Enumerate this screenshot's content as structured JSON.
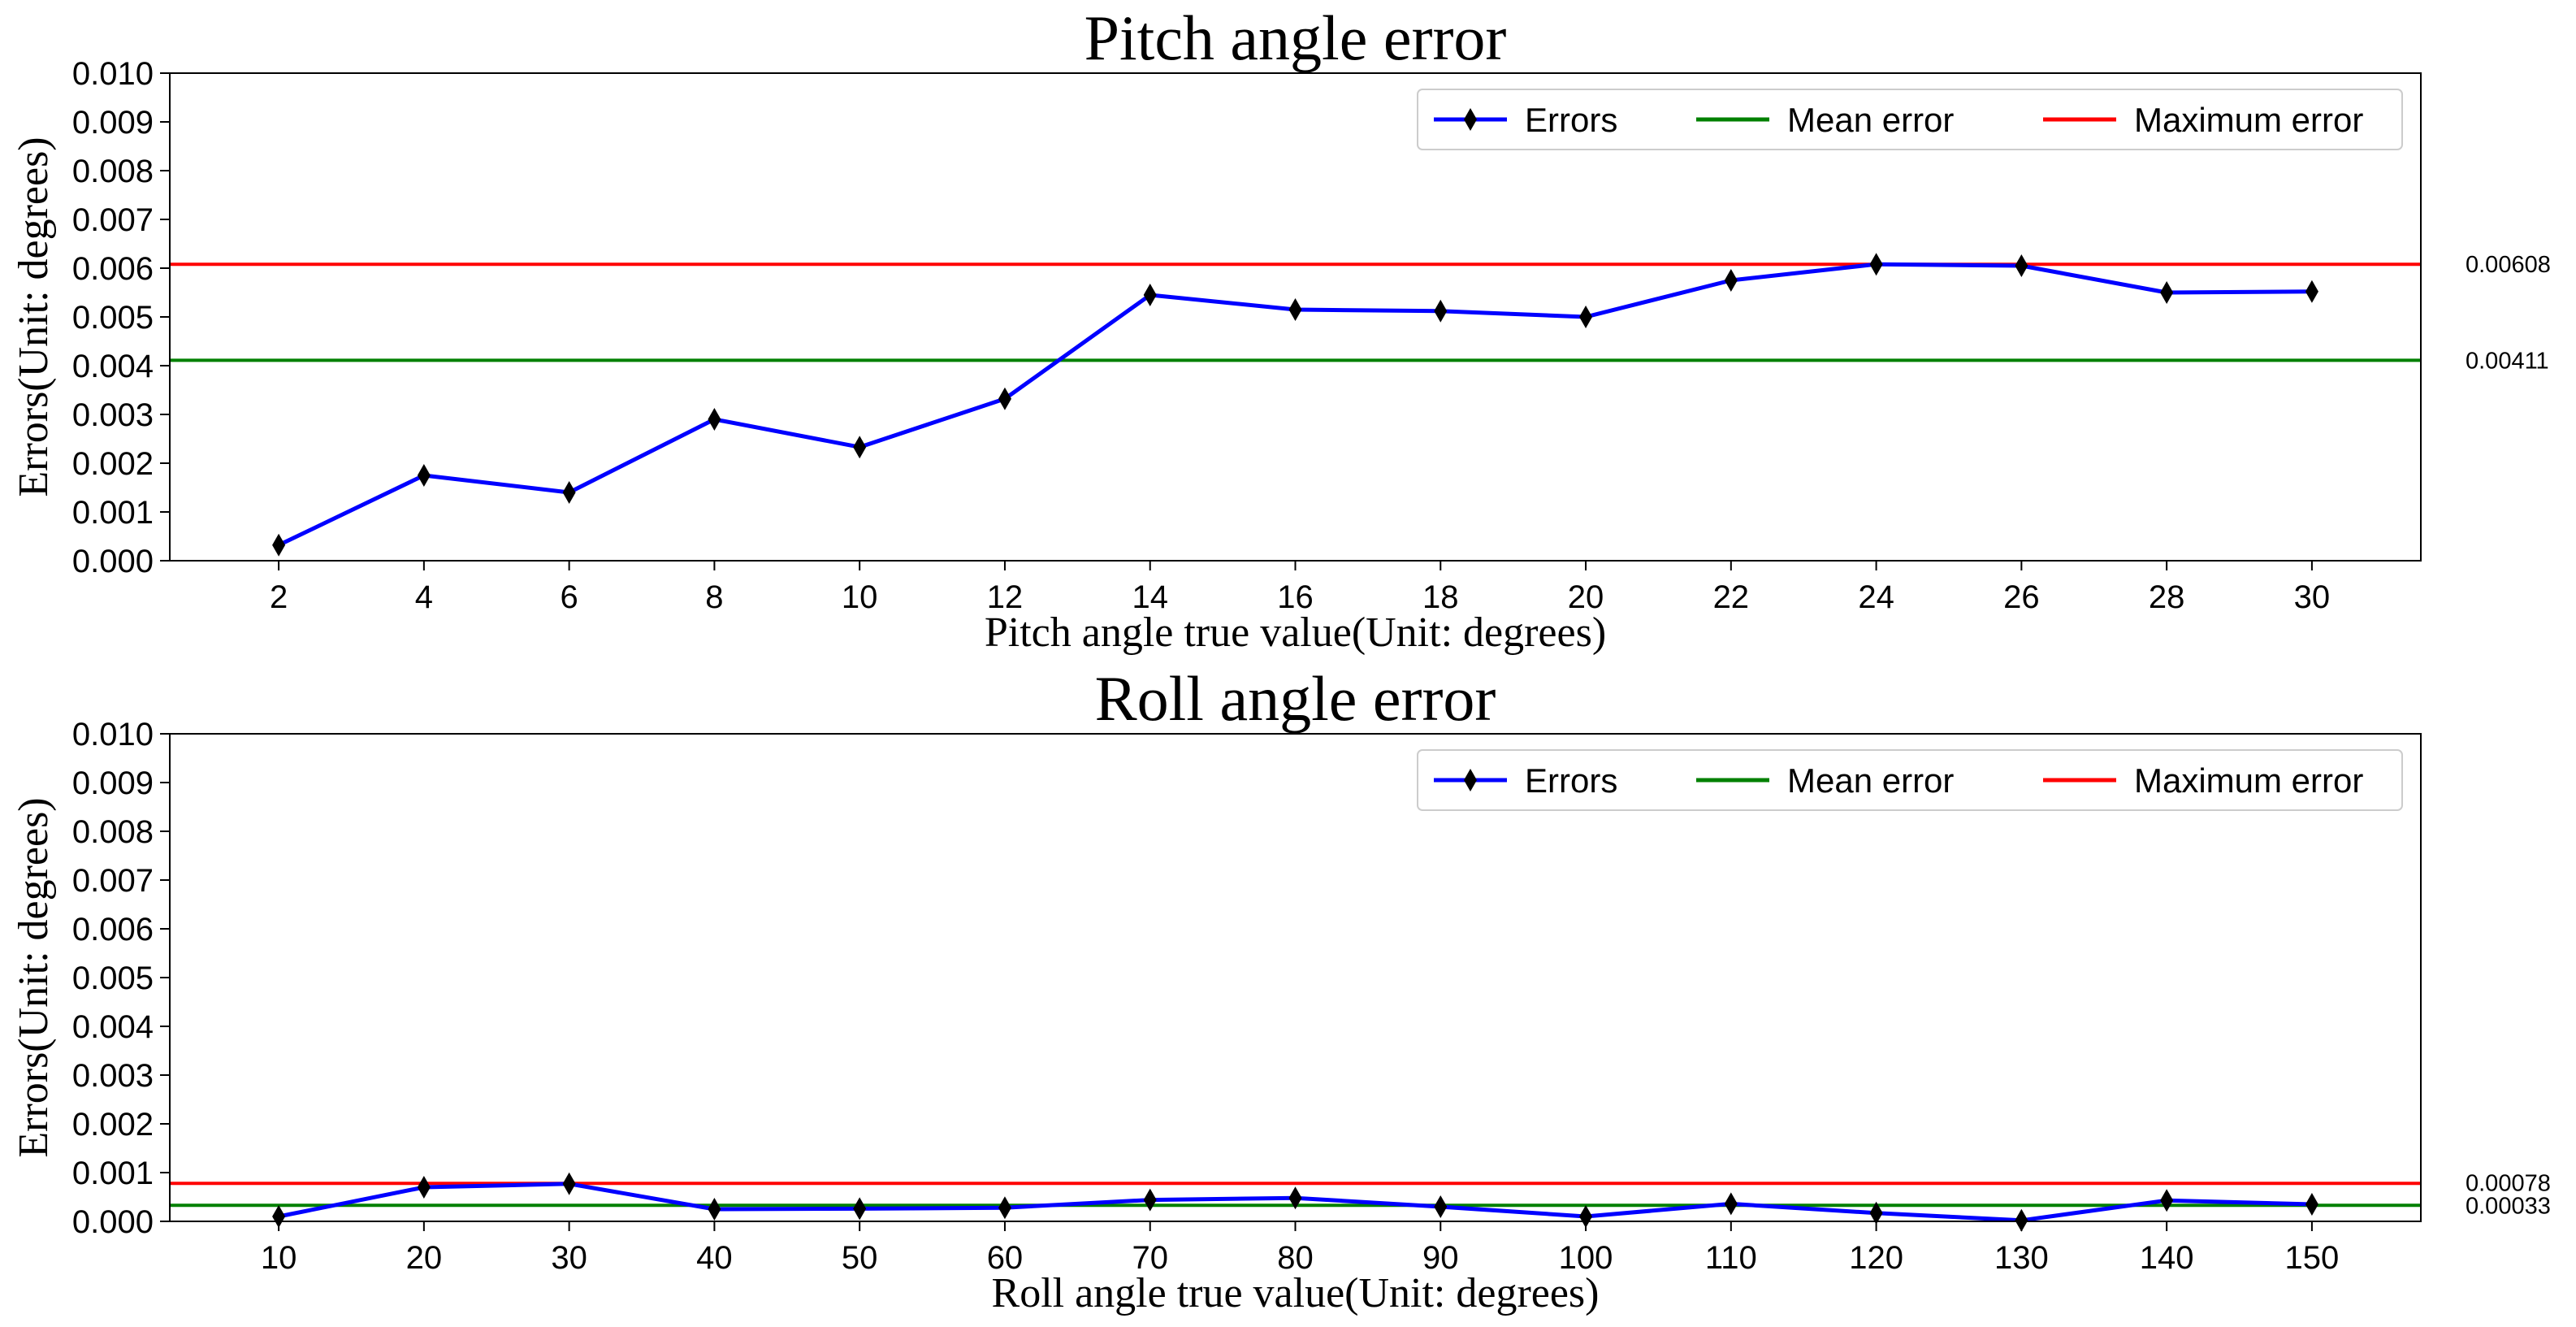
{
  "chart_data": [
    {
      "type": "line",
      "title": "Pitch angle error",
      "xlabel": "Pitch angle true value(Unit: degrees)",
      "ylabel": "Errors(Unit: degrees)",
      "x": [
        2,
        4,
        6,
        8,
        10,
        12,
        14,
        16,
        18,
        20,
        22,
        24,
        26,
        28,
        30
      ],
      "x_tick_labels": [
        "2",
        "4",
        "6",
        "8",
        "10",
        "12",
        "14",
        "16",
        "18",
        "20",
        "22",
        "24",
        "26",
        "28",
        "30"
      ],
      "y_tick_labels": [
        "0.000",
        "0.001",
        "0.002",
        "0.003",
        "0.004",
        "0.005",
        "0.006",
        "0.007",
        "0.008",
        "0.009",
        "0.010"
      ],
      "ylim": [
        0,
        0.01
      ],
      "series": [
        {
          "name": "Errors",
          "color": "#0000ff",
          "marker": "thin-diamond",
          "values": [
            0.00032,
            0.00175,
            0.0014,
            0.0029,
            0.00233,
            0.00332,
            0.00545,
            0.00515,
            0.00512,
            0.005,
            0.00575,
            0.00608,
            0.00605,
            0.0055,
            0.00552
          ]
        },
        {
          "name": "Mean error",
          "color": "#008000",
          "value": 0.00411,
          "label": "0.00411"
        },
        {
          "name": "Maximum error",
          "color": "#ff0000",
          "value": 0.00608,
          "label": "0.00608"
        }
      ],
      "legend": [
        "Errors",
        "Mean error",
        "Maximum error"
      ],
      "legend_position": "top-right",
      "grid": false
    },
    {
      "type": "line",
      "title": "Roll angle error",
      "xlabel": "Roll angle true value(Unit: degrees)",
      "ylabel": "Errors(Unit: degrees)",
      "x": [
        10,
        20,
        30,
        40,
        50,
        60,
        70,
        80,
        90,
        100,
        110,
        120,
        130,
        140,
        150
      ],
      "x_tick_labels": [
        "10",
        "20",
        "30",
        "40",
        "50",
        "60",
        "70",
        "80",
        "90",
        "100",
        "110",
        "120",
        "130",
        "140",
        "150"
      ],
      "y_tick_labels": [
        "0.000",
        "0.001",
        "0.002",
        "0.003",
        "0.004",
        "0.005",
        "0.006",
        "0.007",
        "0.008",
        "0.009",
        "0.010"
      ],
      "ylim": [
        0,
        0.01
      ],
      "series": [
        {
          "name": "Errors",
          "color": "#0000ff",
          "marker": "thin-diamond",
          "values": [
            0.0001,
            0.0007,
            0.00077,
            0.00025,
            0.00026,
            0.00028,
            0.00044,
            0.00048,
            0.0003,
            0.0001,
            0.00036,
            0.00017,
            2e-05,
            0.00043,
            0.00035
          ]
        },
        {
          "name": "Mean error",
          "color": "#008000",
          "value": 0.00033,
          "label": "0.00033"
        },
        {
          "name": "Maximum error",
          "color": "#ff0000",
          "value": 0.00078,
          "label": "0.00078"
        }
      ],
      "legend": [
        "Errors",
        "Mean error",
        "Maximum error"
      ],
      "legend_position": "top-right",
      "grid": false
    }
  ]
}
